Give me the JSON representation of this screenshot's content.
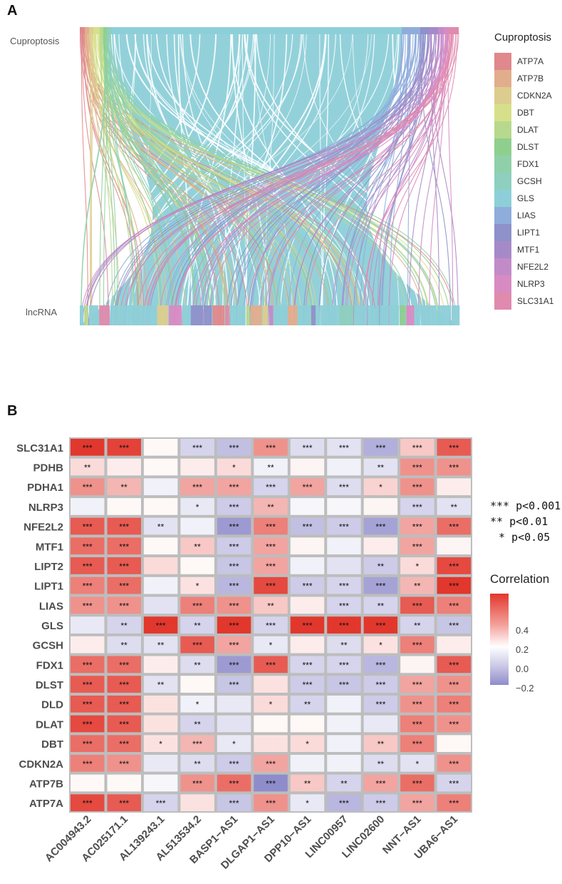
{
  "panel_a": {
    "letter": "A",
    "top_axis_label": "Cuproptosis",
    "bottom_axis_label": "lncRNA",
    "legend_title": "Cuproptosis",
    "legend": [
      {
        "label": "ATP7A",
        "color": "#e0888c"
      },
      {
        "label": "ATP7B",
        "color": "#e2ad8c"
      },
      {
        "label": "CDKN2A",
        "color": "#dccd8e"
      },
      {
        "label": "DBT",
        "color": "#d6e08a"
      },
      {
        "label": "DLAT",
        "color": "#b7d98e"
      },
      {
        "label": "DLST",
        "color": "#8fcf8e"
      },
      {
        "label": "FDX1",
        "color": "#90d0a8"
      },
      {
        "label": "GCSH",
        "color": "#8ecfbf"
      },
      {
        "label": "GLS",
        "color": "#8dcfd8"
      },
      {
        "label": "LIAS",
        "color": "#8faddb"
      },
      {
        "label": "LIPT1",
        "color": "#8e91ca"
      },
      {
        "label": "MTF1",
        "color": "#a68ac8"
      },
      {
        "label": "NFE2L2",
        "color": "#c28bc8"
      },
      {
        "label": "NLRP3",
        "color": "#d88bc3"
      },
      {
        "label": "SLC31A1",
        "color": "#e08aad"
      }
    ]
  },
  "panel_b": {
    "letter": "B",
    "significance": [
      "*** p<0.001",
      "** p<0.01",
      "* p<0.05"
    ],
    "colorbar_title": "Correlation",
    "colorbar_ticks": [
      "0.4",
      "0.2",
      "0.0",
      "−0.2"
    ],
    "colorbar_tick_values": [
      0.4,
      0.2,
      0.0,
      -0.2
    ]
  },
  "chart_data": {
    "type": "heatmap",
    "title": "Correlation",
    "columns": [
      "AC004943.2",
      "AC025171.1",
      "AL139243.1",
      "AL513534.2",
      "BASP1−AS1",
      "DLGAP1−AS1",
      "DPP10−AS1",
      "LINC00957",
      "LINC02600",
      "NNT−AS1",
      "UBA6−AS1"
    ],
    "rows": [
      "SLC31A1",
      "PDHB",
      "PDHA1",
      "NLRP3",
      "NFE2L2",
      "MTF1",
      "LIPT2",
      "LIPT1",
      "LIAS",
      "GLS",
      "GCSH",
      "FDX1",
      "DLST",
      "DLD",
      "DLAT",
      "DBT",
      "CDKN2A",
      "ATP7B",
      "ATP7A"
    ],
    "value_range": [
      -0.4,
      0.55
    ],
    "values": [
      [
        0.55,
        0.52,
        0.02,
        -0.15,
        -0.22,
        0.3,
        -0.12,
        -0.1,
        -0.28,
        0.15,
        0.45
      ],
      [
        0.1,
        0.05,
        0.02,
        0.05,
        0.1,
        -0.05,
        0.03,
        -0.05,
        -0.1,
        0.3,
        0.3
      ],
      [
        0.3,
        0.2,
        -0.05,
        0.25,
        0.25,
        -0.15,
        0.25,
        -0.12,
        0.12,
        0.3,
        0.05
      ],
      [
        -0.05,
        0.02,
        0.02,
        -0.08,
        -0.18,
        0.2,
        -0.03,
        -0.03,
        0.03,
        -0.15,
        -0.1
      ],
      [
        0.45,
        0.45,
        -0.1,
        -0.05,
        -0.35,
        0.35,
        -0.22,
        -0.18,
        -0.32,
        0.25,
        0.4
      ],
      [
        0.4,
        0.4,
        0.02,
        0.15,
        -0.18,
        0.25,
        0.03,
        -0.05,
        0.05,
        0.25,
        0.03
      ],
      [
        0.45,
        0.45,
        0.1,
        0.02,
        -0.2,
        0.25,
        -0.05,
        -0.1,
        -0.18,
        0.1,
        0.5
      ],
      [
        0.35,
        0.4,
        -0.05,
        0.08,
        -0.25,
        0.5,
        -0.18,
        -0.15,
        -0.32,
        0.2,
        0.55
      ],
      [
        0.3,
        0.3,
        -0.1,
        0.35,
        0.3,
        0.15,
        0.05,
        -0.15,
        -0.15,
        0.45,
        0.35
      ],
      [
        -0.08,
        -0.15,
        0.55,
        -0.15,
        0.55,
        -0.15,
        0.55,
        0.55,
        0.55,
        -0.15,
        -0.2
      ],
      [
        0.05,
        -0.12,
        -0.1,
        0.45,
        0.25,
        -0.08,
        0.05,
        -0.12,
        0.08,
        0.35,
        0.05
      ],
      [
        0.4,
        0.4,
        0.05,
        -0.12,
        -0.35,
        0.45,
        -0.15,
        -0.15,
        -0.25,
        0.03,
        0.45
      ],
      [
        0.45,
        0.45,
        -0.1,
        0.02,
        -0.2,
        0.08,
        -0.18,
        -0.2,
        -0.18,
        0.25,
        0.3
      ],
      [
        0.45,
        0.45,
        0.08,
        -0.05,
        -0.08,
        0.1,
        -0.15,
        -0.05,
        -0.18,
        0.3,
        0.35
      ],
      [
        0.5,
        0.45,
        0.08,
        -0.15,
        -0.1,
        0.02,
        0.02,
        -0.05,
        -0.08,
        0.35,
        0.3
      ],
      [
        0.4,
        0.4,
        0.08,
        0.2,
        -0.08,
        0.08,
        0.1,
        -0.05,
        0.15,
        0.35,
        0.02
      ],
      [
        0.35,
        0.3,
        -0.08,
        -0.12,
        -0.18,
        0.25,
        -0.05,
        -0.05,
        -0.12,
        -0.1,
        0.3
      ],
      [
        0.02,
        0.02,
        -0.03,
        0.3,
        0.4,
        -0.4,
        0.15,
        -0.15,
        0.25,
        0.4,
        -0.15
      ],
      [
        0.5,
        0.45,
        -0.15,
        0.08,
        -0.2,
        0.3,
        -0.08,
        -0.25,
        -0.18,
        0.25,
        0.35
      ]
    ],
    "significance": [
      [
        "***",
        "***",
        "",
        "***",
        "***",
        "***",
        "***",
        "***",
        "***",
        "***",
        "***"
      ],
      [
        "**",
        "",
        "",
        "",
        "*",
        "**",
        "",
        "",
        "**",
        "***",
        "***"
      ],
      [
        "***",
        "**",
        "",
        "***",
        "***",
        "***",
        "***",
        "***",
        "*",
        "***",
        ""
      ],
      [
        "",
        "",
        "",
        "*",
        "***",
        "**",
        "",
        "",
        "",
        "***",
        "**"
      ],
      [
        "***",
        "***",
        "**",
        "",
        "***",
        "***",
        "***",
        "***",
        "***",
        "***",
        "***"
      ],
      [
        "***",
        "***",
        "",
        "**",
        "***",
        "***",
        "",
        "",
        "",
        "***",
        ""
      ],
      [
        "***",
        "***",
        "",
        "",
        "***",
        "***",
        "",
        "",
        "**",
        "*",
        "***"
      ],
      [
        "***",
        "***",
        "",
        "*",
        "***",
        "***",
        "***",
        "***",
        "***",
        "**",
        "***"
      ],
      [
        "***",
        "***",
        "",
        "***",
        "***",
        "**",
        "",
        "***",
        "**",
        "***",
        "***"
      ],
      [
        "",
        "**",
        "***",
        "**",
        "***",
        "***",
        "***",
        "***",
        "***",
        "**",
        "***"
      ],
      [
        "",
        "**",
        "**",
        "***",
        "***",
        "*",
        "",
        "**",
        "*",
        "***",
        ""
      ],
      [
        "***",
        "***",
        "",
        "**",
        "***",
        "***",
        "***",
        "***",
        "***",
        "",
        "***"
      ],
      [
        "***",
        "***",
        "**",
        "",
        "***",
        "",
        "***",
        "***",
        "***",
        "***",
        "***"
      ],
      [
        "***",
        "***",
        "",
        "*",
        "",
        "*",
        "**",
        "",
        "***",
        "***",
        "***"
      ],
      [
        "***",
        "***",
        "",
        "**",
        "",
        "",
        "",
        "",
        "",
        "***",
        "***"
      ],
      [
        "***",
        "***",
        "*",
        "***",
        "*",
        "",
        "*",
        "",
        "**",
        "***",
        ""
      ],
      [
        "***",
        "***",
        "",
        "**",
        "***",
        "***",
        "",
        "",
        "**",
        "*",
        "***"
      ],
      [
        "",
        "",
        "",
        "***",
        "***",
        "***",
        "**",
        "**",
        "***",
        "***",
        "***"
      ],
      [
        "***",
        "***",
        "***",
        "",
        "***",
        "***",
        "*",
        "***",
        "***",
        "***",
        "***"
      ]
    ]
  }
}
